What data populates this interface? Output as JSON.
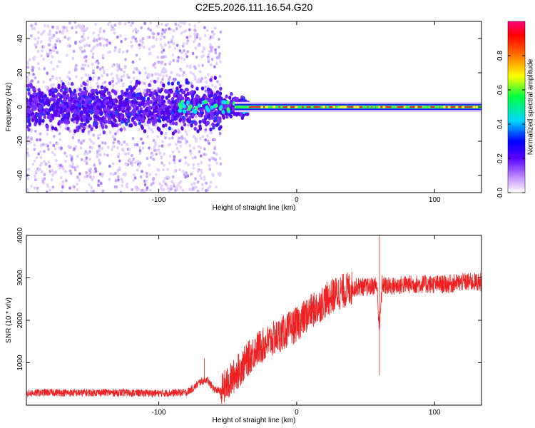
{
  "title": "C2E5.2026.111.16.54.G20",
  "chart_data": [
    {
      "type": "heatmap",
      "xlabel": "Height of straight line (km)",
      "ylabel": "Frequency (Hz)",
      "xlim": [
        -196,
        134
      ],
      "ylim": [
        -50,
        50
      ],
      "xticks": [
        -100,
        0,
        100
      ],
      "yticks": [
        -40,
        -20,
        0,
        20,
        40
      ],
      "description_values": {
        "dominant_frequency_hz": 0,
        "noisy_region_x": [
          -196,
          -55
        ],
        "transition_region_x": [
          -55,
          -35
        ],
        "coherent_region_x": [
          -35,
          134
        ]
      },
      "colorbar": {
        "label": "Normalized spectral amplitude",
        "range": [
          0,
          1
        ],
        "ticks": [
          "0.0",
          "0.2",
          "0.4",
          "0.6",
          "0.8"
        ],
        "colors": [
          "#ffffff",
          "#b066ff",
          "#0000ff",
          "#00ffff",
          "#00ff00",
          "#ffff00",
          "#ff0000",
          "#ff0080"
        ]
      }
    },
    {
      "type": "line",
      "xlabel": "Height of straight line (km)",
      "ylabel": "SNR (10 * v/v)",
      "xlim": [
        -196,
        134
      ],
      "ylim": [
        0,
        4000
      ],
      "xticks": [
        -100,
        0,
        100
      ],
      "yticks": [
        1000,
        2000,
        3000,
        4000
      ],
      "series": [
        {
          "color": "#ee2222",
          "x": [
            -196,
            -180,
            -160,
            -140,
            -120,
            -100,
            -90,
            -80,
            -75,
            -70,
            -65,
            -60,
            -55,
            -50,
            -45,
            -40,
            -35,
            -30,
            -25,
            -20,
            -15,
            -10,
            -5,
            0,
            5,
            10,
            15,
            20,
            25,
            30,
            35,
            40,
            45,
            50,
            55,
            58,
            60,
            62,
            65,
            70,
            80,
            90,
            100,
            110,
            120,
            134
          ],
          "y": [
            280,
            300,
            290,
            300,
            290,
            280,
            290,
            300,
            400,
            550,
            600,
            380,
            320,
            500,
            700,
            900,
            1100,
            1300,
            1400,
            1500,
            1600,
            1700,
            1800,
            1900,
            2050,
            2200,
            2300,
            2450,
            2550,
            2650,
            2700,
            2750,
            2800,
            2780,
            2800,
            2850,
            1800,
            2850,
            2800,
            2800,
            2850,
            2850,
            2850,
            2850,
            2900,
            2900
          ],
          "annotation_spikes": [
            [
              60,
              4000
            ],
            [
              60,
              700
            ],
            [
              -67,
              1100
            ]
          ]
        }
      ]
    }
  ]
}
